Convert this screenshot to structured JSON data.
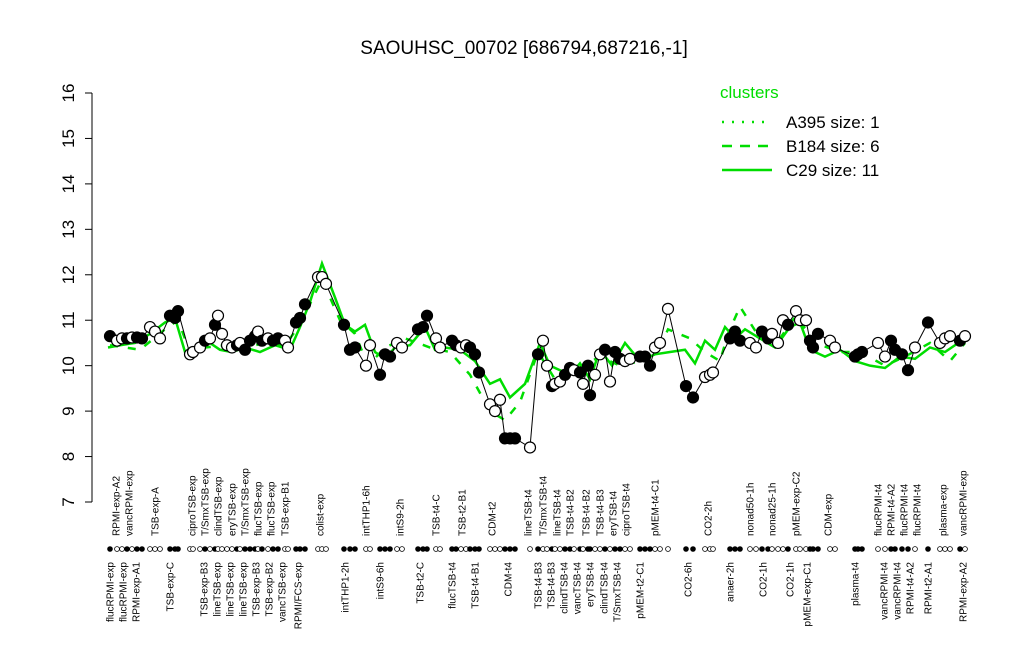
{
  "chart_data": {
    "type": "line",
    "title": "SAOUHSC_00702 [686794,687216,-1]",
    "xlabel": "",
    "ylabel": "",
    "ylim": [
      7,
      16
    ],
    "yticks": [
      7,
      8,
      9,
      10,
      11,
      12,
      13,
      14,
      15,
      16
    ],
    "grid": false,
    "legend": {
      "title": "clusters",
      "placement": "top-right",
      "color": "#00dd00",
      "entries": [
        {
          "name": "A395 size: 1",
          "style": "dotted"
        },
        {
          "name": "B184 size: 6",
          "style": "dashed"
        },
        {
          "name": "C29 size: 11",
          "style": "solid"
        }
      ]
    },
    "top_labels": [
      "RPMI-exp-A2",
      "vancRPMI-exp",
      "TSB-exp-A",
      "ciproTSB-exp",
      "T/SmxTSB-exp",
      "clindTSB-exp",
      "eryTSB-exp",
      "T/SmxTSB-exp",
      "flucTSB-exp",
      "flucTSB-exp",
      "TSB-exp-B1",
      "colist-exp",
      "intTHP1-6h",
      "intS9-2h",
      "TSB-t4-C",
      "TSB-t2-B1",
      "CDM-t2",
      "lineTSB-t4",
      "T/SmxTSB-t4",
      "lineTSB-t4",
      "TSB-t4-B2",
      "TSB-t4-B2",
      "TSB-t4-B3",
      "eryTSB-t4",
      "ciproTSB-t4",
      "pMEM-t4-C1",
      "CO2-2h",
      "nonad50-1h",
      "nonad25-1h",
      "pMEM-exp-C2",
      "CDM-exp",
      "flucRPMI-t4",
      "RPMI-t4-A2",
      "flucRPMI-t4",
      "flucRPMI-t4",
      "plasma-exp",
      "vancRPMI-exp"
    ],
    "bottom_labels": [
      "flucRPMI-exp",
      "flucRPMI-exp",
      "RPMI-exp-A1",
      "TSB-exp-C",
      "TSB-exp-B3",
      "lineTSB-exp",
      "lineTSB-exp",
      "lineTSB-exp",
      "TSB-exp-B3",
      "TSB-exp-B2",
      "vancTSB-exp",
      "RPMI/FCS-exp",
      "intTHP1-2h",
      "intS9-6h",
      "TSB-t2-C",
      "flucTSB-t4",
      "TSB-t4-B1",
      "CDM-t4",
      "TSB-t4-B3",
      "TSB-t4-B3",
      "clindTSB-t4",
      "vancTSB-t4",
      "eryTSB-t4",
      "clindTSB-t4",
      "T/SmxTSB-t4",
      "pMEM-t2-C1",
      "CO2-6h",
      "anaer-2h",
      "CO2-1h",
      "CO2-1h",
      "pMEM-exp-C1",
      "plasma-t4",
      "vancRPMI-t4",
      "vancRPMI-t4",
      "RPMI-t4-A2",
      "RPMI-t2-A1",
      "RPMI-exp-A2"
    ],
    "series": [
      {
        "kind": "samples",
        "color": "#000000",
        "values": [
          10.65,
          10.55,
          10.6,
          10.6,
          10.62,
          10.62,
          10.6,
          10.85,
          10.75,
          10.6,
          11.1,
          11.05,
          11.2,
          10.25,
          10.3,
          10.4,
          10.55,
          10.6,
          10.9,
          11.1,
          10.7,
          10.45,
          10.4,
          10.45,
          10.5,
          10.35,
          10.55,
          10.65,
          10.75,
          10.55,
          10.6,
          10.55,
          10.6,
          10.55,
          10.4,
          10.95,
          11.05,
          11.35,
          11.95,
          11.95,
          11.8,
          10.9,
          10.35,
          10.4,
          10.0,
          10.45,
          9.8,
          10.25,
          10.2,
          10.5,
          10.4,
          10.8,
          10.85,
          11.1,
          10.6,
          10.4,
          10.55,
          10.45,
          10.4,
          10.45,
          10.4,
          10.25,
          9.85,
          9.15,
          9.0,
          9.25,
          8.4,
          8.4,
          8.4,
          8.2,
          10.25,
          10.55,
          10.0,
          9.55,
          9.6,
          9.65,
          9.8,
          9.95,
          9.9,
          9.85,
          9.6,
          10.0,
          9.35,
          9.8,
          10.25,
          10.35,
          9.65,
          10.3,
          10.15,
          10.1,
          10.15,
          10.2,
          10.2,
          10.0,
          10.4,
          10.5,
          11.25,
          9.55,
          9.3,
          9.75,
          9.8,
          9.85,
          10.6,
          10.75,
          10.55,
          10.5,
          10.4,
          10.75,
          10.6,
          10.7,
          10.5,
          11.0,
          10.9,
          11.2,
          11.0,
          11.0,
          10.55,
          10.4,
          10.7,
          10.55,
          10.4,
          10.2,
          10.25,
          10.3,
          10.5,
          10.2,
          10.55,
          10.35,
          10.25,
          9.9,
          10.4,
          10.95,
          10.5,
          10.6,
          10.65,
          10.55,
          10.65
        ],
        "filled": [
          1,
          0,
          0,
          1,
          0,
          1,
          1,
          0,
          0,
          0,
          1,
          1,
          1,
          0,
          0,
          0,
          1,
          0,
          1,
          0,
          0,
          0,
          0,
          1,
          0,
          1,
          1,
          1,
          0,
          1,
          0,
          1,
          1,
          0,
          0,
          1,
          1,
          1,
          0,
          0,
          0,
          1,
          1,
          1,
          0,
          0,
          1,
          1,
          1,
          0,
          0,
          1,
          1,
          1,
          0,
          0,
          1,
          1,
          0,
          0,
          1,
          1,
          1,
          0,
          0,
          0,
          1,
          1,
          1,
          0,
          1,
          0,
          0,
          1,
          0,
          0,
          1,
          1,
          0,
          1,
          0,
          1,
          1,
          0,
          0,
          1,
          0,
          1,
          1,
          0,
          0,
          1,
          1,
          1,
          0,
          0,
          0,
          1,
          1,
          0,
          0,
          0,
          1,
          1,
          1,
          0,
          0,
          1,
          1,
          0,
          0,
          0,
          1,
          0,
          0,
          0,
          1,
          1,
          1,
          0,
          0,
          1,
          1,
          1,
          0,
          0,
          1,
          1,
          1,
          1,
          0,
          1,
          0,
          0,
          0,
          1,
          0
        ]
      },
      {
        "name": "C29 size: 11",
        "style": "solid",
        "color": "#00dd00",
        "values": [
          10.4,
          10.45,
          10.5,
          10.7,
          10.95,
          11.05,
          10.3,
          10.35,
          10.5,
          10.35,
          10.3,
          10.4,
          10.3,
          10.45,
          10.35,
          10.85,
          11.4,
          12.25,
          11.5,
          10.9,
          10.75,
          10.9,
          10.3,
          10.15,
          10.4,
          10.45,
          10.85,
          10.35,
          10.4,
          10.35,
          10.1,
          9.6,
          9.7,
          9.3,
          9.6,
          10.5,
          10.0,
          9.9,
          9.8,
          10.05,
          9.7,
          10.35,
          10.0,
          10.5,
          10.1,
          10.25,
          10.3,
          10.35,
          10.05,
          10.55,
          10.35,
          10.85,
          10.6,
          10.8,
          10.6,
          10.4,
          10.85,
          10.95,
          10.35,
          10.2,
          10.35,
          10.1,
          10.0,
          9.95,
          10.2,
          10.15,
          10.4,
          10.3,
          10.6
        ]
      },
      {
        "name": "B184 size: 6",
        "style": "dashed",
        "color": "#00dd00",
        "values": [
          10.45,
          10.4,
          10.35,
          10.8,
          11.0,
          10.3,
          10.4,
          10.45,
          10.4,
          10.5,
          10.45,
          10.9,
          11.9,
          11.0,
          10.7,
          10.0,
          10.4,
          10.6,
          10.4,
          10.3,
          9.8,
          9.0,
          8.8,
          9.2,
          10.3,
          9.7,
          9.9,
          10.2,
          10.0,
          10.1,
          10.4,
          10.8,
          10.6,
          10.3,
          10.1,
          10.7,
          11.3,
          10.6,
          10.6,
          11.1,
          10.5,
          10.3,
          10.3,
          10.0,
          10.2,
          10.5,
          10.1,
          10.5
        ]
      }
    ]
  }
}
